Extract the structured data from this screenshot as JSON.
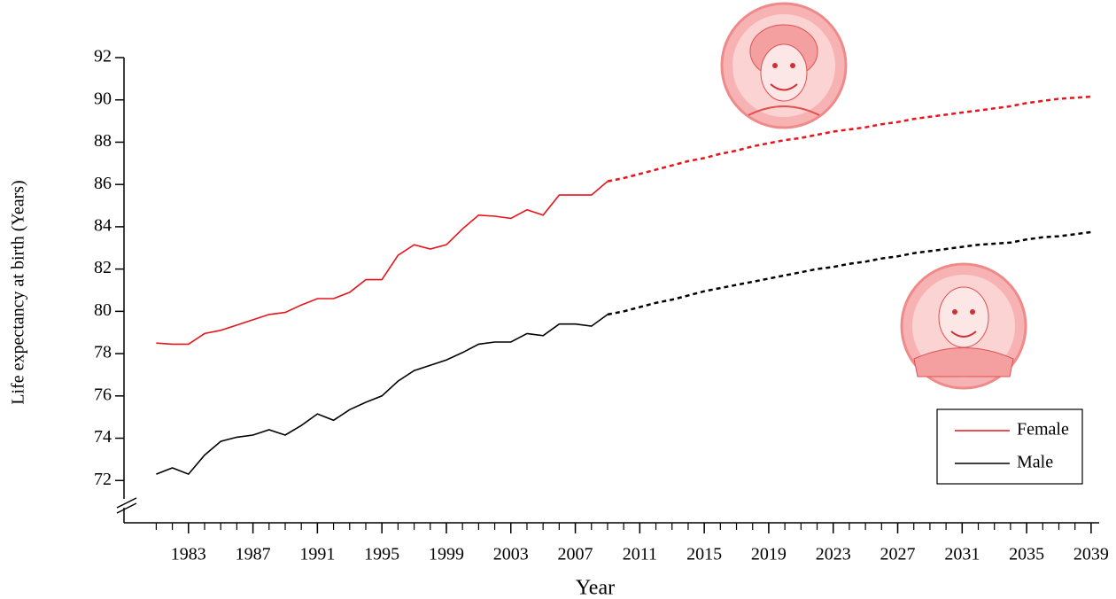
{
  "chart_data": {
    "type": "line",
    "x_label": "Year",
    "y_label": "Life expectancy at birth (Years)",
    "x": [
      1981,
      1982,
      1983,
      1984,
      1985,
      1986,
      1987,
      1988,
      1989,
      1990,
      1991,
      1992,
      1993,
      1994,
      1995,
      1996,
      1997,
      1998,
      1999,
      2000,
      2001,
      2002,
      2003,
      2004,
      2005,
      2006,
      2007,
      2008,
      2009,
      2010,
      2011,
      2012,
      2013,
      2014,
      2015,
      2016,
      2017,
      2018,
      2019,
      2020,
      2021,
      2022,
      2023,
      2024,
      2025,
      2026,
      2027,
      2028,
      2029,
      2030,
      2031,
      2032,
      2033,
      2034,
      2035,
      2036,
      2037,
      2038,
      2039
    ],
    "forecast_start": 2009,
    "series": [
      {
        "name": "Female",
        "color": "#e8141b",
        "values": [
          78.5,
          78.45,
          78.45,
          78.95,
          79.1,
          79.35,
          79.6,
          79.85,
          79.95,
          80.3,
          80.6,
          80.6,
          80.9,
          81.5,
          81.5,
          82.65,
          83.15,
          82.95,
          83.15,
          83.9,
          84.55,
          84.5,
          84.4,
          84.8,
          84.55,
          85.5,
          85.5,
          85.5,
          86.15,
          86.3,
          86.5,
          86.7,
          86.9,
          87.1,
          87.25,
          87.45,
          87.6,
          87.8,
          87.95,
          88.1,
          88.2,
          88.35,
          88.5,
          88.6,
          88.7,
          88.85,
          88.95,
          89.1,
          89.2,
          89.3,
          89.4,
          89.5,
          89.6,
          89.7,
          89.85,
          89.95,
          90.05,
          90.1,
          90.15
        ]
      },
      {
        "name": "Male",
        "color": "#000000",
        "values": [
          72.3,
          72.6,
          72.3,
          73.2,
          73.85,
          74.05,
          74.15,
          74.4,
          74.15,
          74.6,
          75.15,
          74.85,
          75.35,
          75.7,
          76.0,
          76.7,
          77.2,
          77.45,
          77.7,
          78.05,
          78.45,
          78.55,
          78.55,
          78.95,
          78.85,
          79.4,
          79.4,
          79.3,
          79.85,
          80.0,
          80.2,
          80.4,
          80.55,
          80.75,
          80.95,
          81.1,
          81.25,
          81.4,
          81.55,
          81.7,
          81.85,
          82.0,
          82.1,
          82.25,
          82.35,
          82.5,
          82.6,
          82.75,
          82.85,
          82.95,
          83.05,
          83.15,
          83.2,
          83.25,
          83.4,
          83.5,
          83.55,
          83.65,
          83.75
        ]
      }
    ],
    "xlim": [
      1979,
      2039.5
    ],
    "xticks": [
      1983,
      1987,
      1991,
      1995,
      1999,
      2003,
      2007,
      2011,
      2015,
      2019,
      2023,
      2027,
      2031,
      2035,
      2039
    ],
    "ylim": [
      70,
      92
    ],
    "yticks": [
      72,
      74,
      76,
      78,
      80,
      82,
      84,
      86,
      88,
      90,
      92
    ],
    "grid": false,
    "legend": "lower-right"
  }
}
